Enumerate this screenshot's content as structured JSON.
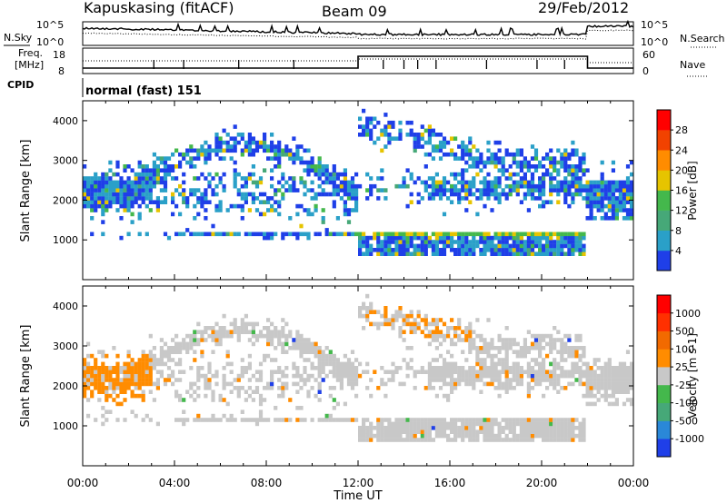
{
  "header": {
    "station": "Kapuskasing (fitACF)",
    "beam": "Beam 09",
    "date": "29/Feb/2012"
  },
  "strips": {
    "nsky_label": "N.Sky",
    "nsearch_label": "N.Search",
    "noise_ticks": [
      "10^5",
      "10^0"
    ],
    "freq_label": "Freq.",
    "freq_unit": "[MHz]",
    "freq_ticks": [
      "18",
      "8"
    ],
    "nave_label": "Nave",
    "nave_ticks": [
      "60",
      "0"
    ],
    "cpid_label": "CPID",
    "cpid_value": "normal (fast) 151"
  },
  "chart_data": [
    {
      "type": "heatmap",
      "panel": "power",
      "x_range_hours": [
        0,
        24
      ],
      "xticks": [
        "00:00",
        "04:00",
        "08:00",
        "12:00",
        "16:00",
        "20:00",
        "00:00"
      ],
      "xlabel": "Time UT",
      "ylabel": "Slant Range [km]",
      "ylim": [
        0,
        4500
      ],
      "yticks": [
        1000,
        2000,
        3000,
        4000
      ],
      "colorbar": {
        "label": "Power [dB]",
        "ticks": [
          4,
          8,
          12,
          16,
          20,
          24,
          28
        ],
        "colors": [
          "#1f3fe8",
          "#2aa0c8",
          "#46a878",
          "#44b84c",
          "#e6c400",
          "#ff8c00",
          "#f24200",
          "#ff0000"
        ]
      }
    },
    {
      "type": "heatmap",
      "panel": "velocity",
      "x_range_hours": [
        0,
        24
      ],
      "xticks": [
        "00:00",
        "04:00",
        "08:00",
        "12:00",
        "16:00",
        "20:00",
        "00:00"
      ],
      "xlabel": "Time UT",
      "ylabel": "Slant Range [km]",
      "ylim": [
        0,
        4500
      ],
      "yticks": [
        1000,
        2000,
        3000,
        4000
      ],
      "colorbar": {
        "label": "Velocity [m s-1]",
        "ticks": [
          "1000",
          "500",
          "100",
          "25",
          "-25",
          "-100",
          "-500",
          "-1000"
        ],
        "colors": [
          "#1f3fe8",
          "#2a88d8",
          "#46a878",
          "#44b84c",
          "#c8c8c8",
          "#ff8c00",
          "#f26a00",
          "#ff3000",
          "#ff0000"
        ]
      }
    }
  ]
}
